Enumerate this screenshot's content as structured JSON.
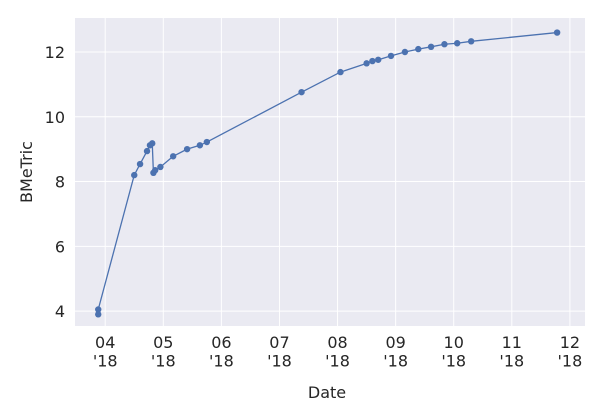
{
  "chart_data": {
    "type": "line",
    "x_label": "Date",
    "y_label": "BMeTric",
    "x": [
      3.88,
      3.88,
      4.5,
      4.6,
      4.72,
      4.77,
      4.81,
      4.83,
      4.86,
      4.95,
      5.17,
      5.41,
      5.63,
      5.75,
      7.38,
      8.05,
      8.5,
      8.6,
      8.7,
      8.92,
      9.16,
      9.39,
      9.61,
      9.84,
      10.06,
      10.3,
      11.78
    ],
    "series": [
      {
        "color": "#4c72b0",
        "values": [
          3.9,
          4.05,
          8.2,
          8.54,
          8.94,
          9.12,
          9.18,
          8.27,
          8.35,
          8.45,
          8.78,
          9.0,
          9.12,
          9.22,
          10.76,
          11.38,
          11.65,
          11.72,
          11.76,
          11.88,
          12.0,
          12.09,
          12.16,
          12.24,
          12.27,
          12.33,
          12.6
        ]
      }
    ],
    "xlim": [
      3.48,
      12.26
    ],
    "xticks": [
      {
        "value": 4,
        "label": "04\n'18"
      },
      {
        "value": 5,
        "label": "05\n'18"
      },
      {
        "value": 6,
        "label": "06\n'18"
      },
      {
        "value": 7,
        "label": "07\n'18"
      },
      {
        "value": 8,
        "label": "08\n'18"
      },
      {
        "value": 9,
        "label": "09\n'18"
      },
      {
        "value": 10,
        "label": "10\n'18"
      },
      {
        "value": 11,
        "label": "11\n'18"
      },
      {
        "value": 12,
        "label": "12\n'18"
      }
    ],
    "ylim": [
      3.54,
      13.05
    ],
    "yticks": [
      4,
      6,
      8,
      10,
      12
    ],
    "grid": true,
    "background": "#eaeaf2"
  }
}
